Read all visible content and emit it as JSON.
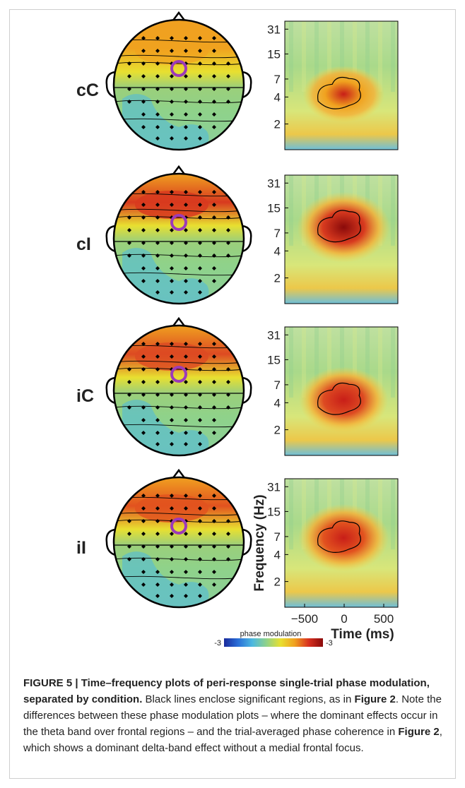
{
  "figure": {
    "panels": [
      {
        "condition": "cC",
        "hot": "#f0a21f",
        "intensity": 0.55,
        "blob_cy": 4.2
      },
      {
        "condition": "cI",
        "hot": "#d83a1f",
        "intensity": 1.0,
        "blob_cy": 3.0
      },
      {
        "condition": "iC",
        "hot": "#dd4a22",
        "intensity": 0.85,
        "blob_cy": 4.2
      },
      {
        "condition": "iI",
        "hot": "#e2521f",
        "intensity": 0.9,
        "blob_cy": 3.4
      }
    ],
    "freq_ticks": [
      "31",
      "15",
      "7",
      "4",
      "2"
    ],
    "time_ticks": [
      "−500",
      "0",
      "500"
    ],
    "freq_axis_label": "Frequency (Hz)",
    "time_axis_label": "Time (ms)",
    "colorbar": {
      "title": "phase modulation",
      "min_label": "-3",
      "max_label": "-3",
      "colors": [
        "#1a2a9c",
        "#2a6fd8",
        "#4cb8e0",
        "#8fd28a",
        "#e8e030",
        "#f0a020",
        "#d83020",
        "#8a0a0a"
      ]
    }
  },
  "caption": {
    "lead": "FIGURE 5 | Time–frequency plots of peri-response single-trial phase modulation, separated by condition.",
    "part1": " Black lines enclose significant regions, as in ",
    "ref1": "Figure 2",
    "part2": ". Note the differences between these phase modulation plots – where the dominant effects occur in the theta band over frontal regions – and the trial-averaged phase coherence in ",
    "ref2": "Figure 2",
    "part3": ", which shows a dominant delta-band effect without a medial frontal focus."
  }
}
